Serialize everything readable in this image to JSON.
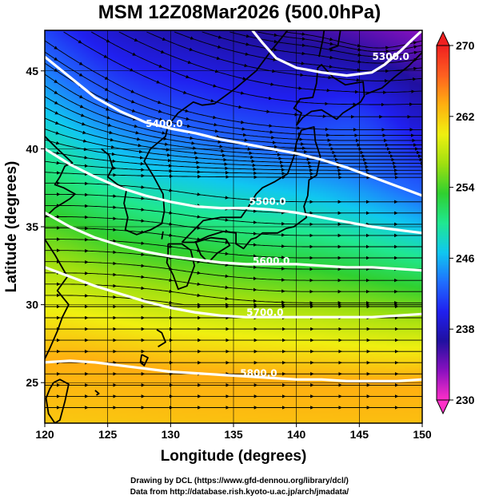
{
  "title": "MSM 12Z08Mar2026 (500.0hPa)",
  "x_axis": {
    "label": "Longitude (degrees)",
    "ticks": [
      120,
      125,
      130,
      135,
      140,
      145,
      150
    ]
  },
  "y_axis": {
    "label": "Latitude  (degrees)",
    "ticks": [
      25,
      30,
      35,
      40,
      45
    ]
  },
  "extent": {
    "lon": [
      120,
      150
    ],
    "lat": [
      22.4,
      47.6
    ]
  },
  "colorbar": {
    "ticks": [
      230,
      238,
      246,
      254,
      262,
      270
    ],
    "range": [
      230,
      270
    ],
    "colors": [
      "#ff30c8",
      "#8a10c0",
      "#2010a0",
      "#2020f0",
      "#2070ff",
      "#10c8f0",
      "#20e890",
      "#30d030",
      "#a0e010",
      "#f0f010",
      "#ffb010",
      "#ff6020",
      "#f02020"
    ]
  },
  "contours": [
    {
      "label": "5400.0",
      "label_lon": 129.5,
      "label_lat": 41.4,
      "path": [
        [
          120,
          45.9
        ],
        [
          122,
          44.6
        ],
        [
          124,
          43.3
        ],
        [
          126,
          42.4
        ],
        [
          128,
          41.7
        ],
        [
          130,
          41.3
        ],
        [
          132,
          41.0
        ],
        [
          134,
          40.6
        ],
        [
          136,
          40.3
        ],
        [
          138,
          40.0
        ],
        [
          140,
          39.7
        ],
        [
          142,
          39.3
        ],
        [
          144,
          38.8
        ],
        [
          146,
          38.2
        ],
        [
          148,
          37.6
        ],
        [
          150,
          37.0
        ]
      ]
    },
    {
      "label": "5500.0",
      "label_lon": 137.7,
      "label_lat": 36.4,
      "path": [
        [
          120,
          40.0
        ],
        [
          122,
          39.0
        ],
        [
          124,
          38.2
        ],
        [
          126,
          37.5
        ],
        [
          128,
          37.0
        ],
        [
          130,
          36.6
        ],
        [
          132,
          36.3
        ],
        [
          134,
          36.2
        ],
        [
          136,
          36.2
        ],
        [
          138,
          36.1
        ],
        [
          140,
          35.9
        ],
        [
          142,
          35.6
        ],
        [
          144,
          35.3
        ],
        [
          146,
          35.0
        ],
        [
          148,
          34.8
        ],
        [
          150,
          34.6
        ]
      ]
    },
    {
      "label": "5600.0",
      "label_lon": 138.0,
      "label_lat": 32.6,
      "path": [
        [
          120,
          35.9
        ],
        [
          122,
          35.0
        ],
        [
          124,
          34.3
        ],
        [
          126,
          33.8
        ],
        [
          128,
          33.4
        ],
        [
          130,
          33.1
        ],
        [
          132,
          32.9
        ],
        [
          134,
          32.7
        ],
        [
          136,
          32.6
        ],
        [
          138,
          32.6
        ],
        [
          140,
          32.6
        ],
        [
          142,
          32.5
        ],
        [
          144,
          32.4
        ],
        [
          146,
          32.4
        ],
        [
          148,
          32.3
        ],
        [
          150,
          32.2
        ]
      ]
    },
    {
      "label": "5700.0",
      "label_lon": 137.5,
      "label_lat": 29.3,
      "path": [
        [
          120,
          32.4
        ],
        [
          122,
          31.8
        ],
        [
          124,
          31.2
        ],
        [
          126,
          30.7
        ],
        [
          128,
          30.2
        ],
        [
          130,
          29.8
        ],
        [
          132,
          29.5
        ],
        [
          134,
          29.3
        ],
        [
          136,
          29.2
        ],
        [
          138,
          29.2
        ],
        [
          140,
          29.2
        ],
        [
          142,
          29.2
        ],
        [
          144,
          29.2
        ],
        [
          146,
          29.2
        ],
        [
          148,
          29.3
        ],
        [
          150,
          29.4
        ]
      ]
    },
    {
      "label": "5800.0",
      "label_lon": 137.0,
      "label_lat": 25.4,
      "path": [
        [
          120,
          26.3
        ],
        [
          122,
          26.4
        ],
        [
          124,
          26.3
        ],
        [
          126,
          26.1
        ],
        [
          128,
          25.9
        ],
        [
          130,
          25.7
        ],
        [
          132,
          25.6
        ],
        [
          134,
          25.5
        ],
        [
          136,
          25.4
        ],
        [
          138,
          25.3
        ],
        [
          140,
          25.2
        ],
        [
          142,
          25.2
        ],
        [
          144,
          25.1
        ],
        [
          146,
          25.1
        ],
        [
          148,
          25.1
        ],
        [
          150,
          25.2
        ]
      ]
    },
    {
      "label": "5300.0",
      "label_lon": 147.5,
      "label_lat": 45.7,
      "path": [
        [
          136.5,
          47.6
        ],
        [
          137.3,
          46.8
        ],
        [
          138.4,
          45.8
        ],
        [
          140,
          45.2
        ],
        [
          142,
          44.9
        ],
        [
          144,
          44.7
        ],
        [
          146,
          44.9
        ],
        [
          147,
          45.4
        ],
        [
          148.3,
          46.3
        ],
        [
          149.2,
          47.0
        ],
        [
          150,
          47.6
        ]
      ]
    }
  ],
  "coastlines": [
    [
      [
        120.0,
        40.8
      ],
      [
        121.0,
        40.0
      ],
      [
        122.2,
        39.1
      ],
      [
        121.6,
        38.9
      ],
      [
        121.2,
        38.2
      ],
      [
        120.8,
        37.7
      ],
      [
        121.5,
        37.5
      ],
      [
        122.4,
        37.1
      ],
      [
        122.0,
        36.8
      ],
      [
        120.8,
        36.2
      ],
      [
        120.0,
        35.6
      ]
    ],
    [
      [
        120.0,
        34.2
      ],
      [
        120.8,
        33.2
      ],
      [
        121.8,
        31.8
      ],
      [
        121.0,
        30.9
      ],
      [
        121.9,
        30.0
      ],
      [
        121.4,
        29.2
      ],
      [
        121.0,
        28.3
      ],
      [
        120.4,
        27.2
      ],
      [
        119.8,
        26.2
      ]
    ],
    [
      [
        120.7,
        25.0
      ],
      [
        121.2,
        25.2
      ],
      [
        121.9,
        24.9
      ],
      [
        121.6,
        23.8
      ],
      [
        121.2,
        22.6
      ],
      [
        120.8,
        22.4
      ],
      [
        120.3,
        23.0
      ],
      [
        120.1,
        24.0
      ],
      [
        120.4,
        24.6
      ],
      [
        120.7,
        25.0
      ]
    ],
    [
      [
        124.5,
        40.0
      ],
      [
        125.1,
        39.6
      ],
      [
        125.4,
        38.8
      ],
      [
        125.0,
        38.2
      ],
      [
        125.8,
        37.7
      ],
      [
        126.5,
        37.4
      ],
      [
        126.3,
        36.5
      ],
      [
        126.6,
        35.6
      ],
      [
        126.4,
        34.8
      ],
      [
        127.3,
        34.5
      ],
      [
        128.4,
        34.8
      ],
      [
        129.3,
        35.2
      ],
      [
        129.5,
        36.0
      ],
      [
        129.4,
        37.1
      ],
      [
        128.6,
        38.3
      ],
      [
        127.9,
        39.2
      ],
      [
        128.4,
        40.0
      ],
      [
        129.6,
        40.8
      ],
      [
        129.8,
        41.5
      ],
      [
        130.6,
        42.3
      ]
    ],
    [
      [
        130.6,
        42.3
      ],
      [
        131.8,
        43.0
      ],
      [
        132.5,
        42.8
      ],
      [
        133.5,
        42.9
      ],
      [
        135.2,
        43.9
      ],
      [
        136.8,
        45.0
      ],
      [
        138.0,
        46.3
      ],
      [
        139.0,
        47.3
      ],
      [
        139.3,
        47.6
      ]
    ],
    [
      [
        129.8,
        33.9
      ],
      [
        130.9,
        33.9
      ],
      [
        131.6,
        33.5
      ],
      [
        131.9,
        32.5
      ],
      [
        131.3,
        31.2
      ],
      [
        130.6,
        31.0
      ],
      [
        130.2,
        31.9
      ],
      [
        129.7,
        32.7
      ],
      [
        129.8,
        33.3
      ],
      [
        129.8,
        33.9
      ]
    ],
    [
      [
        132.0,
        34.0
      ],
      [
        133.2,
        34.3
      ],
      [
        134.4,
        34.2
      ],
      [
        134.7,
        33.8
      ],
      [
        133.7,
        33.3
      ],
      [
        133.0,
        32.7
      ],
      [
        132.4,
        33.2
      ],
      [
        132.0,
        34.0
      ]
    ],
    [
      [
        130.9,
        34.0
      ],
      [
        131.5,
        34.5
      ],
      [
        132.6,
        35.4
      ],
      [
        134.0,
        35.6
      ],
      [
        135.6,
        35.6
      ],
      [
        136.2,
        36.3
      ],
      [
        136.8,
        37.1
      ],
      [
        137.3,
        37.5
      ],
      [
        138.3,
        37.9
      ],
      [
        139.3,
        38.4
      ],
      [
        139.8,
        39.5
      ],
      [
        140.0,
        40.4
      ],
      [
        140.4,
        41.2
      ],
      [
        141.4,
        41.4
      ],
      [
        141.5,
        40.5
      ],
      [
        141.9,
        39.5
      ],
      [
        141.6,
        38.3
      ],
      [
        141.0,
        38.0
      ],
      [
        140.9,
        37.0
      ],
      [
        140.6,
        36.3
      ],
      [
        140.8,
        35.6
      ],
      [
        139.8,
        35.0
      ],
      [
        139.2,
        34.9
      ],
      [
        138.5,
        34.6
      ],
      [
        137.3,
        34.6
      ],
      [
        136.8,
        34.3
      ],
      [
        136.4,
        34.2
      ],
      [
        135.8,
        33.6
      ],
      [
        135.2,
        33.9
      ],
      [
        135.2,
        34.6
      ],
      [
        134.2,
        34.7
      ],
      [
        133.0,
        34.4
      ],
      [
        131.9,
        34.0
      ],
      [
        130.9,
        34.0
      ]
    ],
    [
      [
        140.0,
        41.5
      ],
      [
        140.4,
        42.3
      ],
      [
        139.8,
        42.6
      ],
      [
        140.3,
        43.2
      ],
      [
        141.3,
        43.3
      ],
      [
        141.6,
        44.2
      ],
      [
        141.7,
        45.2
      ],
      [
        142.0,
        45.4
      ],
      [
        142.9,
        44.6
      ],
      [
        143.9,
        44.1
      ],
      [
        145.3,
        44.3
      ],
      [
        145.4,
        43.4
      ],
      [
        145.1,
        43.0
      ],
      [
        143.7,
        42.3
      ],
      [
        143.2,
        41.9
      ],
      [
        142.0,
        42.5
      ],
      [
        141.2,
        42.4
      ],
      [
        140.5,
        42.0
      ],
      [
        140.0,
        41.5
      ]
    ],
    [
      [
        141.8,
        45.9
      ],
      [
        142.1,
        47.0
      ],
      [
        142.2,
        47.6
      ]
    ],
    [
      [
        143.5,
        47.6
      ],
      [
        143.3,
        46.6
      ],
      [
        142.6,
        46.4
      ]
    ],
    [
      [
        145.5,
        43.5
      ],
      [
        146.8,
        43.9
      ],
      [
        147.8,
        44.6
      ],
      [
        148.9,
        45.3
      ],
      [
        149.9,
        46.1
      ],
      [
        150.0,
        46.2
      ]
    ],
    [
      [
        128.9,
        28.4
      ],
      [
        129.3,
        28.2
      ],
      [
        129.6,
        27.6
      ],
      [
        129.0,
        27.3
      ]
    ],
    [
      [
        127.7,
        26.8
      ],
      [
        128.2,
        26.6
      ],
      [
        127.9,
        26.1
      ],
      [
        127.6,
        26.3
      ],
      [
        127.7,
        26.8
      ]
    ],
    [
      [
        124.0,
        24.5
      ],
      [
        124.3,
        24.3
      ],
      [
        124.1,
        24.2
      ]
    ],
    [
      [
        129.4,
        34.7
      ],
      [
        129.3,
        34.2
      ]
    ]
  ]
}
